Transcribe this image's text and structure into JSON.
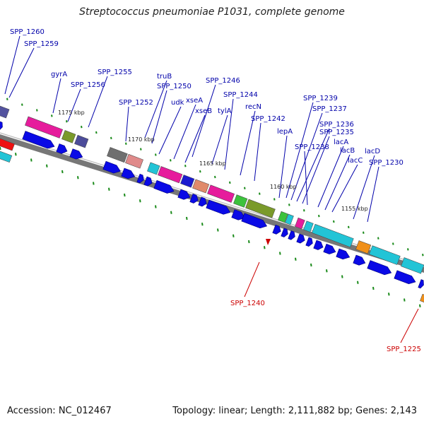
{
  "title": "Streptococcus pneumoniae P1031, complete genome",
  "footer": {
    "accession": "Accession: NC_012467",
    "summary": "Topology: linear; Length: 2,111,882 bp; Genes: 2,143"
  },
  "colors": {
    "gene_label": "#0000aa",
    "highlight_label": "#cc0000",
    "cds_arrow": "#0a0ae6",
    "backbone": "#777777",
    "tick": "#1a8a1a"
  },
  "ruler": [
    "1175 kbp",
    "1170 kbp",
    "1165 kbp",
    "1160 kbp",
    "1155 kbp"
  ],
  "gene_labels": [
    {
      "text": "SPP_1260",
      "color": "blue"
    },
    {
      "text": "SPP_1259",
      "color": "blue"
    },
    {
      "text": "gyrA",
      "color": "blue"
    },
    {
      "text": "SPP_1255",
      "color": "blue"
    },
    {
      "text": "SPP_1256",
      "color": "blue"
    },
    {
      "text": "truB",
      "color": "blue"
    },
    {
      "text": "SPP_1250",
      "color": "blue"
    },
    {
      "text": "SPP_1252",
      "color": "blue"
    },
    {
      "text": "udk",
      "color": "blue"
    },
    {
      "text": "SPP_1246",
      "color": "blue"
    },
    {
      "text": "xseA",
      "color": "blue"
    },
    {
      "text": "xseB",
      "color": "blue"
    },
    {
      "text": "tylA",
      "color": "blue"
    },
    {
      "text": "SPP_1244",
      "color": "blue"
    },
    {
      "text": "recN",
      "color": "blue"
    },
    {
      "text": "SPP_1242",
      "color": "blue"
    },
    {
      "text": "lepA",
      "color": "blue"
    },
    {
      "text": "SPP_1239",
      "color": "blue"
    },
    {
      "text": "SPP_1237",
      "color": "blue"
    },
    {
      "text": "SPP_1236",
      "color": "blue"
    },
    {
      "text": "SPP_1235",
      "color": "blue"
    },
    {
      "text": "SPP_1238",
      "color": "blue"
    },
    {
      "text": "lacA",
      "color": "blue"
    },
    {
      "text": "lacB",
      "color": "blue"
    },
    {
      "text": "lacD",
      "color": "blue"
    },
    {
      "text": "lacC",
      "color": "blue"
    },
    {
      "text": "SPP_1230",
      "color": "blue"
    },
    {
      "text": "SPP_1240",
      "color": "red"
    },
    {
      "text": "SPP_1225",
      "color": "red"
    }
  ]
}
